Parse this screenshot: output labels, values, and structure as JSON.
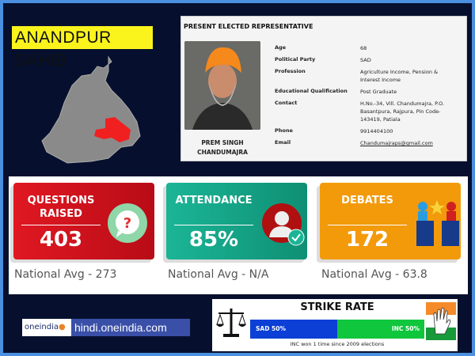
{
  "constituency": "ANANDPUR SAHIB",
  "info": {
    "heading": "PRESENT ELECTED REPRESENTATIVE",
    "name_line1": "PREM SINGH",
    "name_line2": "CHANDUMAJRA",
    "fields": [
      {
        "label": "Age",
        "value": "68"
      },
      {
        "label": "Political Party",
        "value": "SAD"
      },
      {
        "label": "Profession",
        "value": "Agriculture Income, Pension & Interest Income"
      },
      {
        "label": "Educational Qualification",
        "value": "Post Graduate"
      },
      {
        "label": "Contact",
        "value": "H.No.-34, Vill. Chandumajra, P.O. Basantpura, Rajpura, Pin Code-143419, Patiala"
      },
      {
        "label": "Phone",
        "value": "9914404100"
      },
      {
        "label": "Email",
        "value": "Chandumajraps@gmail.com"
      }
    ]
  },
  "stats": [
    {
      "line1": "QUESTIONS",
      "line2": "RAISED",
      "value": "403",
      "avg": "National Avg - 273",
      "color": "#d9141f",
      "icon": "question-bubble-icon"
    },
    {
      "line1": "ATTENDANCE",
      "line2": "",
      "value": "85%",
      "avg": "National Avg - N/A",
      "color": "#16a58a",
      "icon": "user-check-icon"
    },
    {
      "line1": "DEBATES",
      "line2": "",
      "value": "172",
      "avg": "National Avg - 63.8",
      "color": "#f39a0a",
      "icon": "debate-podium-icon"
    }
  ],
  "logo": {
    "brand": "oneindia",
    "url": "hindi.oneindia.com"
  },
  "strike_rate": {
    "title": "STRIKE RATE",
    "sad_label": "SAD 50%",
    "sad_share": 50,
    "sad_color": "#0b3fd6",
    "inc_label": "INC 50%",
    "inc_share": 50,
    "inc_color": "#10c63c",
    "footnote": "INC won 1 time since 2009 elections"
  }
}
